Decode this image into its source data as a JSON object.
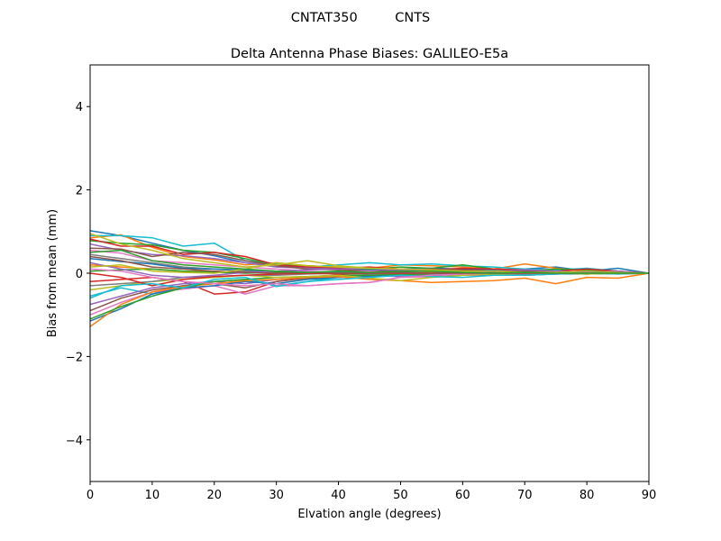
{
  "suptitle": "CNTAT350         CNTS",
  "chart_data": {
    "type": "line",
    "title": "Delta Antenna Phase Biases: GALILEO-E5a",
    "xlabel": "Elvation angle (degrees)",
    "ylabel": "Bias from mean (mm)",
    "xlim": [
      0,
      90
    ],
    "ylim": [
      -5,
      5
    ],
    "xticks": [
      0,
      10,
      20,
      30,
      40,
      50,
      60,
      70,
      80,
      90
    ],
    "yticks": [
      -4,
      -2,
      0,
      2,
      4
    ],
    "ytick_labels": [
      "−4",
      "−2",
      "0",
      "2",
      "4"
    ],
    "grid": false,
    "x": [
      0,
      5,
      10,
      15,
      20,
      25,
      30,
      35,
      40,
      45,
      50,
      55,
      60,
      65,
      70,
      75,
      80,
      85,
      90
    ],
    "series": [
      {
        "color": "#1f77b4",
        "values": [
          1.02,
          0.9,
          0.72,
          0.55,
          0.42,
          0.25,
          0.18,
          0.12,
          0.1,
          0.08,
          0.1,
          0.12,
          0.1,
          0.08,
          0.1,
          0.15,
          0.05,
          0.12,
          0.0
        ]
      },
      {
        "color": "#ff7f0e",
        "values": [
          0.85,
          0.92,
          0.62,
          0.4,
          0.32,
          0.2,
          0.25,
          0.18,
          0.15,
          0.12,
          0.2,
          0.18,
          0.15,
          0.1,
          0.22,
          0.12,
          0.05,
          0.0,
          0.0
        ]
      },
      {
        "color": "#17becf",
        "values": [
          0.9,
          0.9,
          0.85,
          0.65,
          0.72,
          0.3,
          0.22,
          0.15,
          0.2,
          0.25,
          0.2,
          0.22,
          0.18,
          0.15,
          0.1,
          0.08,
          0.12,
          0.05,
          0.0
        ]
      },
      {
        "color": "#2ca02c",
        "values": [
          0.78,
          0.72,
          0.68,
          0.55,
          0.5,
          0.35,
          0.2,
          0.18,
          0.12,
          0.1,
          0.15,
          0.12,
          0.2,
          0.1,
          0.05,
          0.1,
          0.08,
          0.05,
          0.0
        ]
      },
      {
        "color": "#d62728",
        "values": [
          0.82,
          0.65,
          0.65,
          0.45,
          0.5,
          0.4,
          0.2,
          0.15,
          0.12,
          0.15,
          0.1,
          0.08,
          0.12,
          0.1,
          0.08,
          0.05,
          0.1,
          0.05,
          0.0
        ]
      },
      {
        "color": "#9467bd",
        "values": [
          0.7,
          0.55,
          0.45,
          0.42,
          0.35,
          0.25,
          0.15,
          0.12,
          0.1,
          0.05,
          0.08,
          0.1,
          0.05,
          0.05,
          0.08,
          0.05,
          0.02,
          0.05,
          0.0
        ]
      },
      {
        "color": "#8c564b",
        "values": [
          0.6,
          0.58,
          0.4,
          0.5,
          0.45,
          0.3,
          0.18,
          0.1,
          0.08,
          0.05,
          0.05,
          0.1,
          0.08,
          0.05,
          0.05,
          0.02,
          0.05,
          0.02,
          0.0
        ]
      },
      {
        "color": "#e377c2",
        "values": [
          0.55,
          0.48,
          0.3,
          0.25,
          0.2,
          0.15,
          0.1,
          0.05,
          0.02,
          0.05,
          0.0,
          0.02,
          0.05,
          0.02,
          0.0,
          0.02,
          0.0,
          0.02,
          0.0
        ]
      },
      {
        "color": "#bcbd22",
        "values": [
          0.95,
          0.7,
          0.55,
          0.35,
          0.25,
          0.15,
          0.2,
          0.3,
          0.18,
          0.12,
          0.1,
          0.05,
          0.05,
          0.02,
          0.0,
          0.02,
          0.05,
          0.02,
          0.0
        ]
      },
      {
        "color": "#7f7f7f",
        "values": [
          0.45,
          0.35,
          0.25,
          0.15,
          0.1,
          0.05,
          0.05,
          0.02,
          0.0,
          0.02,
          0.0,
          0.0,
          0.02,
          0.0,
          0.0,
          0.0,
          0.02,
          0.0,
          0.0
        ]
      },
      {
        "color": "#1f77b4",
        "values": [
          0.35,
          0.28,
          0.22,
          0.12,
          0.1,
          0.08,
          0.05,
          0.02,
          0.02,
          0.0,
          0.02,
          0.0,
          0.0,
          0.02,
          0.0,
          0.0,
          0.0,
          0.0,
          0.0
        ]
      },
      {
        "color": "#ff7f0e",
        "values": [
          0.2,
          0.15,
          0.1,
          0.05,
          0.05,
          0.02,
          0.0,
          0.02,
          0.0,
          0.0,
          0.0,
          0.02,
          0.0,
          0.0,
          0.0,
          0.0,
          0.0,
          0.0,
          0.0
        ]
      },
      {
        "color": "#2ca02c",
        "values": [
          0.05,
          0.08,
          0.1,
          0.05,
          0.02,
          0.0,
          0.02,
          0.0,
          0.0,
          0.0,
          0.0,
          0.0,
          0.02,
          0.0,
          0.0,
          0.0,
          0.0,
          0.0,
          0.0
        ]
      },
      {
        "color": "#d62728",
        "values": [
          -0.2,
          -0.15,
          -0.1,
          -0.2,
          -0.5,
          -0.45,
          -0.2,
          -0.1,
          -0.05,
          -0.05,
          -0.05,
          -0.02,
          -0.05,
          -0.02,
          -0.05,
          -0.02,
          0.0,
          -0.02,
          0.0
        ]
      },
      {
        "color": "#17becf",
        "values": [
          -0.55,
          -0.35,
          -0.5,
          -0.3,
          -0.2,
          -0.15,
          -0.3,
          -0.2,
          -0.1,
          -0.05,
          -0.05,
          -0.08,
          -0.05,
          -0.02,
          -0.05,
          -0.02,
          -0.02,
          0.0,
          0.0
        ]
      },
      {
        "color": "#9467bd",
        "values": [
          -0.75,
          -0.55,
          -0.35,
          -0.25,
          -0.2,
          -0.25,
          -0.15,
          -0.1,
          -0.05,
          -0.05,
          -0.08,
          -0.05,
          -0.02,
          -0.05,
          0.0,
          -0.02,
          0.0,
          0.0,
          0.0
        ]
      },
      {
        "color": "#8c564b",
        "values": [
          -0.9,
          -0.6,
          -0.4,
          -0.3,
          -0.25,
          -0.35,
          -0.2,
          -0.12,
          -0.1,
          -0.08,
          -0.05,
          -0.05,
          -0.05,
          -0.02,
          -0.05,
          0.0,
          -0.02,
          0.0,
          0.0
        ]
      },
      {
        "color": "#e377c2",
        "values": [
          -1.0,
          -0.7,
          -0.45,
          -0.38,
          -0.3,
          -0.5,
          -0.3,
          -0.3,
          -0.25,
          -0.22,
          -0.1,
          -0.08,
          -0.05,
          -0.05,
          -0.02,
          -0.02,
          0.0,
          0.0,
          0.0
        ]
      },
      {
        "color": "#1f77b4",
        "values": [
          -1.15,
          -0.85,
          -0.5,
          -0.35,
          -0.3,
          -0.2,
          -0.25,
          -0.15,
          -0.1,
          -0.08,
          -0.05,
          -0.05,
          -0.02,
          -0.05,
          -0.02,
          0.0,
          -0.02,
          0.0,
          0.0
        ]
      },
      {
        "color": "#ff7f0e",
        "values": [
          -1.28,
          -0.75,
          -0.45,
          -0.32,
          -0.25,
          -0.18,
          -0.15,
          -0.1,
          -0.08,
          -0.15,
          -0.18,
          -0.22,
          -0.2,
          -0.18,
          -0.12,
          -0.25,
          -0.1,
          -0.12,
          0.0
        ]
      },
      {
        "color": "#2ca02c",
        "values": [
          -1.1,
          -0.8,
          -0.55,
          -0.35,
          -0.2,
          -0.15,
          -0.1,
          -0.08,
          -0.05,
          -0.05,
          -0.02,
          -0.05,
          -0.02,
          0.0,
          -0.02,
          0.0,
          0.0,
          0.0,
          0.0
        ]
      },
      {
        "color": "#bcbd22",
        "values": [
          -0.4,
          -0.3,
          -0.2,
          -0.15,
          -0.1,
          -0.05,
          -0.1,
          -0.08,
          -0.05,
          -0.12,
          -0.18,
          -0.1,
          -0.05,
          -0.02,
          -0.05,
          0.0,
          -0.02,
          0.0,
          0.0
        ]
      },
      {
        "color": "#7f7f7f",
        "values": [
          -0.3,
          -0.25,
          -0.2,
          -0.1,
          -0.08,
          -0.05,
          -0.05,
          -0.02,
          0.0,
          -0.02,
          0.0,
          -0.02,
          0.0,
          0.0,
          -0.02,
          0.0,
          0.0,
          0.0,
          0.0
        ]
      },
      {
        "color": "#d62728",
        "values": [
          0.0,
          -0.1,
          -0.3,
          -0.15,
          -0.08,
          -0.05,
          -0.02,
          0.0,
          -0.02,
          0.0,
          0.0,
          0.0,
          0.0,
          0.0,
          0.0,
          0.0,
          0.0,
          0.0,
          0.0
        ]
      },
      {
        "color": "#9467bd",
        "values": [
          0.25,
          0.1,
          -0.05,
          -0.1,
          -0.05,
          0.02,
          0.05,
          0.08,
          0.1,
          0.12,
          0.08,
          0.05,
          0.02,
          0.05,
          0.02,
          0.0,
          0.02,
          0.0,
          0.0
        ]
      },
      {
        "color": "#17becf",
        "values": [
          -0.6,
          -0.3,
          -0.25,
          -0.35,
          -0.15,
          -0.1,
          -0.32,
          -0.2,
          -0.15,
          -0.1,
          -0.05,
          -0.08,
          -0.1,
          -0.05,
          -0.05,
          -0.02,
          0.0,
          -0.02,
          0.0
        ]
      },
      {
        "color": "#e377c2",
        "values": [
          0.1,
          0.05,
          -0.1,
          -0.2,
          -0.25,
          -0.3,
          -0.25,
          -0.3,
          -0.25,
          -0.22,
          -0.1,
          -0.05,
          -0.02,
          0.0,
          0.0,
          0.0,
          0.0,
          0.0,
          0.0
        ]
      },
      {
        "color": "#8c564b",
        "values": [
          0.4,
          0.3,
          0.15,
          0.1,
          0.05,
          0.02,
          0.0,
          0.02,
          0.0,
          0.0,
          0.02,
          0.0,
          0.0,
          0.0,
          0.0,
          0.0,
          0.0,
          0.0,
          0.0
        ]
      },
      {
        "color": "#bcbd22",
        "values": [
          0.15,
          0.2,
          0.05,
          0.02,
          0.0,
          0.1,
          0.25,
          0.18,
          0.15,
          0.12,
          0.1,
          0.08,
          0.05,
          0.05,
          0.02,
          0.02,
          0.0,
          0.0,
          0.0
        ]
      },
      {
        "color": "#2ca02c",
        "values": [
          0.5,
          0.55,
          0.3,
          0.2,
          0.15,
          0.1,
          0.05,
          0.02,
          0.05,
          0.02,
          0.05,
          0.05,
          0.02,
          0.0,
          0.02,
          0.0,
          0.0,
          0.0,
          0.0
        ]
      }
    ]
  }
}
